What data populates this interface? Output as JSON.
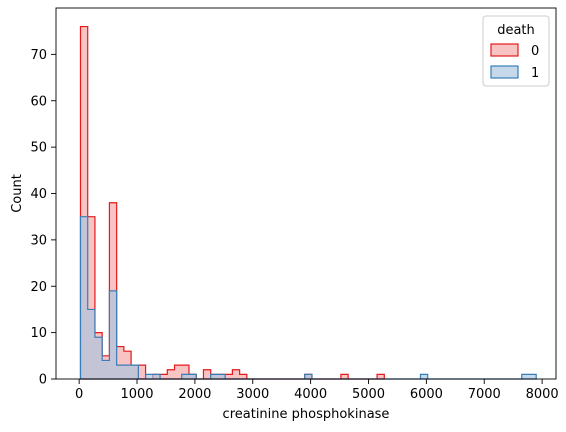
{
  "chart_data": {
    "type": "histogram-step",
    "xlabel": "creatinine phosphokinase",
    "ylabel": "Count",
    "xlim": [
      -400,
      8240
    ],
    "ylim": [
      0,
      80
    ],
    "x_ticks": [
      0,
      1000,
      2000,
      3000,
      4000,
      5000,
      6000,
      7000,
      8000
    ],
    "y_ticks": [
      0,
      10,
      20,
      30,
      40,
      50,
      60,
      70
    ],
    "legend": {
      "title": "death",
      "placement": "top-right",
      "entries": [
        "0",
        "1"
      ]
    },
    "series": [
      {
        "name": "0",
        "stroke": "#e41a1c",
        "fill": "#f4a3a3",
        "x_edges": [
          23,
          148,
          273,
          398,
          523,
          648,
          773,
          898,
          1023,
          1148,
          1273,
          1398,
          1523,
          1648,
          1773,
          1898,
          2023,
          2148,
          2273,
          2398,
          2523,
          2648,
          2773,
          2898,
          3023,
          3148,
          3273,
          3398,
          3523,
          3648,
          3773,
          3898,
          4023,
          4148,
          4273,
          4398,
          4523,
          4648,
          4773,
          4898,
          5023,
          5148,
          5273
        ],
        "counts": [
          76,
          35,
          10,
          5,
          38,
          7,
          6,
          3,
          3,
          0,
          1,
          1,
          2,
          3,
          3,
          1,
          0,
          2,
          1,
          1,
          1,
          2,
          1,
          0,
          0,
          0,
          0,
          0,
          0,
          0,
          0,
          1,
          0,
          0,
          0,
          0,
          1,
          0,
          0,
          0,
          0,
          1
        ]
      },
      {
        "name": "1",
        "stroke": "#377eb8",
        "fill": "#a6c4e0",
        "x_edges": [
          23,
          148,
          273,
          398,
          523,
          648,
          773,
          898,
          1023,
          1148,
          1273,
          1398,
          1523,
          1648,
          1773,
          1898,
          2023,
          2148,
          2273,
          2398,
          2523,
          2648,
          2773,
          2898,
          3023,
          3148,
          3273,
          3398,
          3523,
          3648,
          3773,
          3898,
          4023,
          4148,
          4273,
          4398,
          4523,
          4648,
          4773,
          4898,
          5023,
          5148,
          5273,
          5398,
          5523,
          5648,
          5773,
          5898,
          6023,
          6148,
          6273,
          6398,
          6523,
          6648,
          6773,
          6898,
          7023,
          7148,
          7273,
          7398,
          7523,
          7648,
          7773,
          7898
        ],
        "counts": [
          35,
          15,
          9,
          4,
          19,
          3,
          3,
          3,
          0,
          1,
          1,
          0,
          0,
          0,
          1,
          1,
          0,
          0,
          1,
          1,
          0,
          0,
          0,
          0,
          0,
          0,
          0,
          0,
          0,
          0,
          0,
          1,
          0,
          0,
          0,
          0,
          0,
          0,
          0,
          0,
          0,
          0,
          0,
          0,
          0,
          0,
          0,
          1,
          0,
          0,
          0,
          0,
          0,
          0,
          0,
          0,
          0,
          0,
          0,
          0,
          0,
          1,
          1
        ]
      }
    ]
  }
}
